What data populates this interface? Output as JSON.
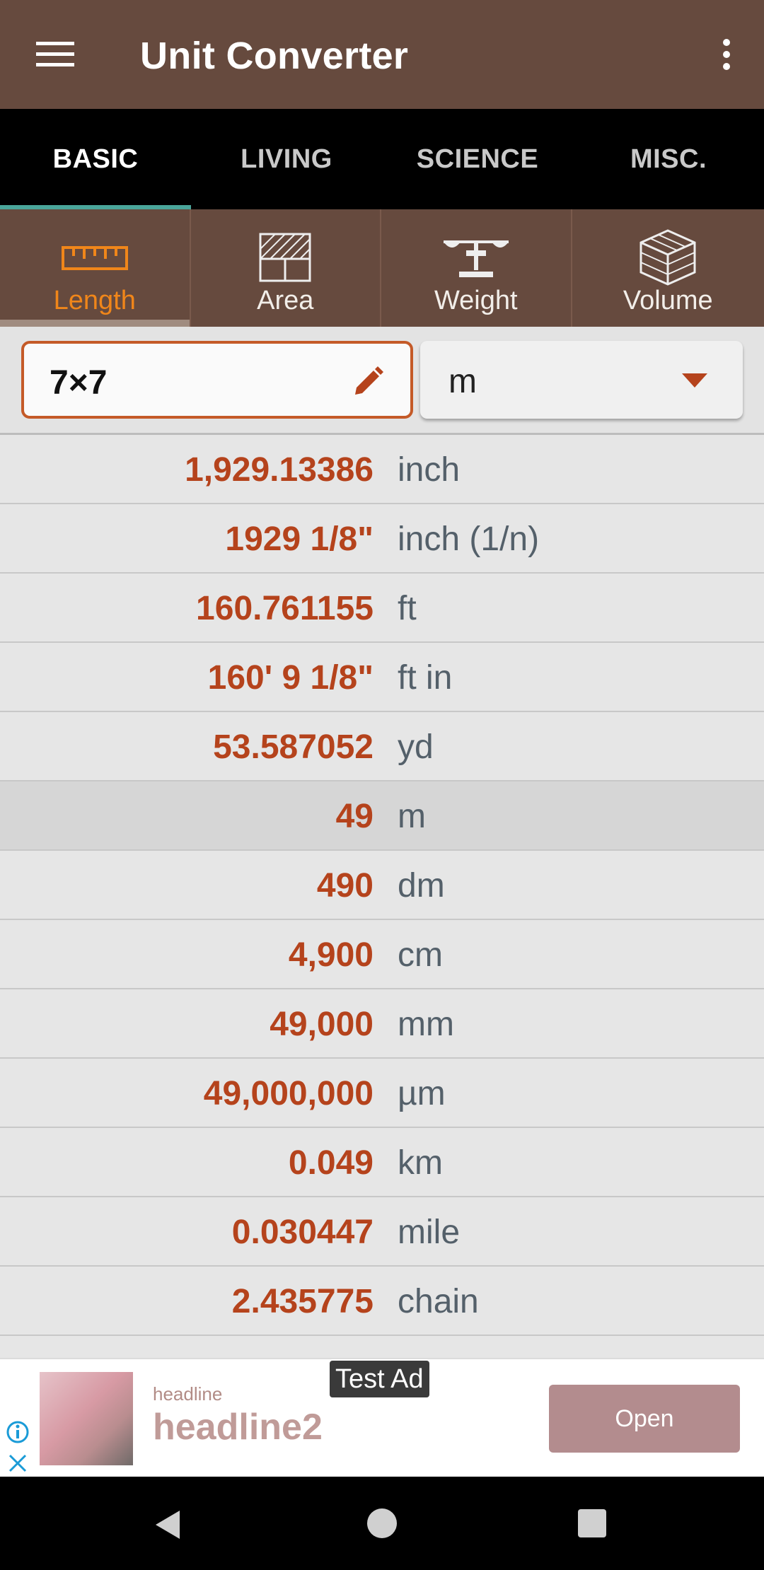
{
  "app": {
    "title": "Unit Converter"
  },
  "tabs": [
    {
      "label": "BASIC",
      "active": true
    },
    {
      "label": "LIVING",
      "active": false
    },
    {
      "label": "SCIENCE",
      "active": false
    },
    {
      "label": "MISC.",
      "active": false
    }
  ],
  "categories": [
    {
      "label": "Length",
      "icon": "ruler-icon",
      "active": true
    },
    {
      "label": "Area",
      "icon": "area-grid-icon",
      "active": false
    },
    {
      "label": "Weight",
      "icon": "scale-icon",
      "active": false
    },
    {
      "label": "Volume",
      "icon": "cube-icon",
      "active": false
    }
  ],
  "input": {
    "expression": "7×7",
    "unit": "m"
  },
  "results": [
    {
      "value": "1,929.13386",
      "unit": "inch"
    },
    {
      "value": "1929 1/8\"",
      "unit": "inch (1/n)"
    },
    {
      "value": "160.761155",
      "unit": "ft"
    },
    {
      "value": "160' 9 1/8\"",
      "unit": "ft in"
    },
    {
      "value": "53.587052",
      "unit": "yd"
    },
    {
      "value": "49",
      "unit": "m",
      "selected": true
    },
    {
      "value": "490",
      "unit": "dm"
    },
    {
      "value": "4,900",
      "unit": "cm"
    },
    {
      "value": "49,000",
      "unit": "mm"
    },
    {
      "value": "49,000,000",
      "unit": "µm"
    },
    {
      "value": "0.049",
      "unit": "km"
    },
    {
      "value": "0.030447",
      "unit": "mile"
    },
    {
      "value": "2.435775",
      "unit": "chain"
    }
  ],
  "ad": {
    "badge": "Test Ad",
    "headline": "headline",
    "headline2": "headline2",
    "open_label": "Open"
  },
  "colors": {
    "appbar": "#664a3e",
    "accent": "#f0861a",
    "value_text": "#b5431c",
    "tab_indicator": "#4aa59a"
  }
}
